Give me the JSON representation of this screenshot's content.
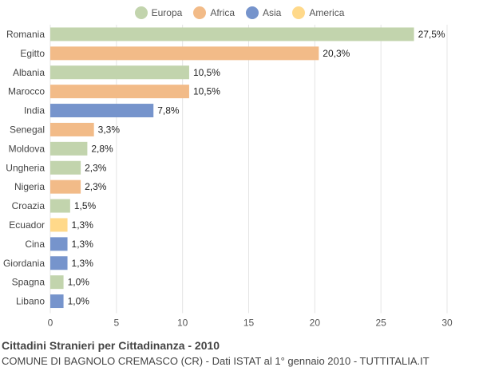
{
  "legend": [
    {
      "name": "Europa",
      "color": "#c2d4ad"
    },
    {
      "name": "Africa",
      "color": "#f2bb88"
    },
    {
      "name": "Asia",
      "color": "#7694cc"
    },
    {
      "name": "America",
      "color": "#ffd98a"
    }
  ],
  "chart_data": {
    "type": "bar",
    "orientation": "horizontal",
    "categories": [
      "Romania",
      "Egitto",
      "Albania",
      "Marocco",
      "India",
      "Senegal",
      "Moldova",
      "Ungheria",
      "Nigeria",
      "Croazia",
      "Ecuador",
      "Cina",
      "Giordania",
      "Spagna",
      "Libano"
    ],
    "values": [
      27.5,
      20.3,
      10.5,
      10.5,
      7.8,
      3.3,
      2.8,
      2.3,
      2.3,
      1.5,
      1.3,
      1.3,
      1.3,
      1.0,
      1.0
    ],
    "value_labels": [
      "27,5%",
      "20,3%",
      "10,5%",
      "10,5%",
      "7,8%",
      "3,3%",
      "2,8%",
      "2,3%",
      "2,3%",
      "1,5%",
      "1,3%",
      "1,3%",
      "1,3%",
      "1,0%",
      "1,0%"
    ],
    "continent": [
      "Europa",
      "Africa",
      "Europa",
      "Africa",
      "Asia",
      "Africa",
      "Europa",
      "Europa",
      "Africa",
      "Europa",
      "America",
      "Asia",
      "Asia",
      "Europa",
      "Asia"
    ],
    "xlim": [
      0,
      30
    ],
    "xticks": [
      0,
      5,
      10,
      15,
      20,
      25,
      30
    ],
    "grid": true,
    "legend_position": "top-center"
  },
  "footer": {
    "title": "Cittadini Stranieri per Cittadinanza - 2010",
    "subtitle": "COMUNE DI BAGNOLO CREMASCO (CR) - Dati ISTAT al 1° gennaio 2010 - TUTTITALIA.IT"
  }
}
